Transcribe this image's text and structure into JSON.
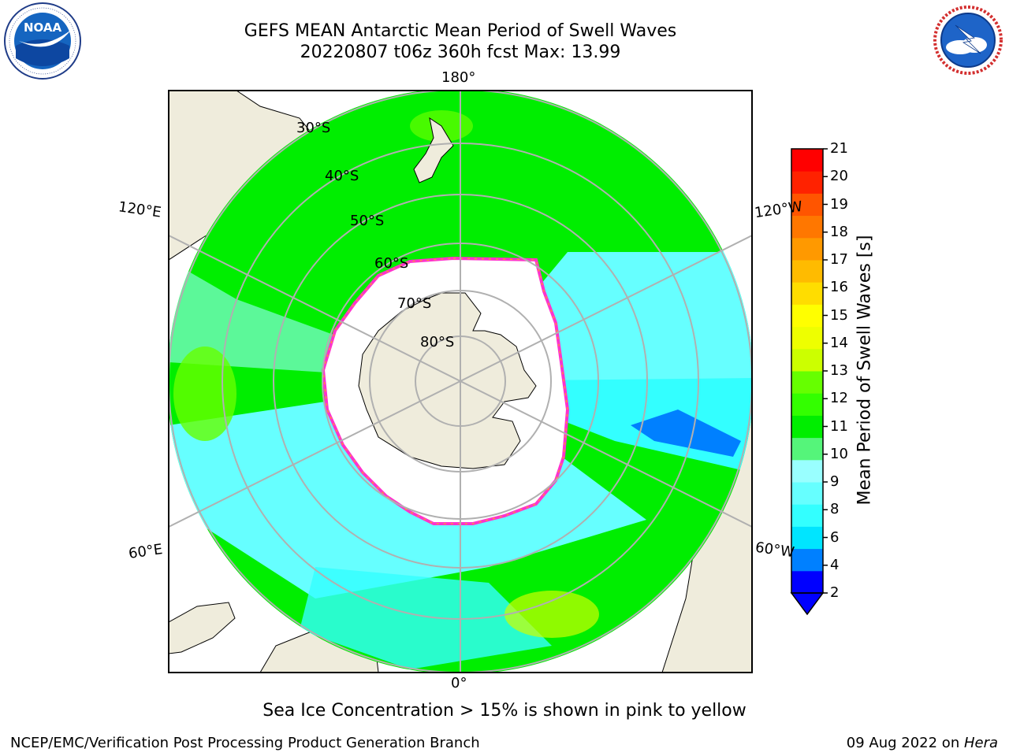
{
  "title": {
    "line1": "GEFS MEAN Antarctic Mean Period of Swell Waves",
    "line2": "20220807 t06z 360h fcst   Max: 13.99"
  },
  "logos": {
    "noaa": {
      "text": "NOAA",
      "ring_text": "NATIONAL OCEANIC AND ATMOSPHERIC ADMINISTRATION · U.S. DEPARTMENT OF COMMERCE"
    },
    "nws": {
      "ring_text": "NATIONAL WEATHER SERVICE"
    }
  },
  "map": {
    "projection": "south-polar-stereographic",
    "longitude_labels": {
      "top": "180°",
      "upper_left": "120°E",
      "upper_right": "120°W",
      "lower_left": "60°E",
      "lower_right": "60°W",
      "bottom": "0°"
    },
    "latitude_labels": [
      "30°S",
      "40°S",
      "50°S",
      "60°S",
      "70°S",
      "80°S"
    ],
    "colors": {
      "land": "#efecdc",
      "ice_free_white": "#ffffff",
      "sea_ice_edge": "#ff33cc",
      "gridline": "#b0b0b0"
    }
  },
  "colorbar": {
    "label": "Mean Period of Swell Waves [s]",
    "ticks": [
      "21",
      "20",
      "19",
      "18",
      "17",
      "16",
      "15",
      "14",
      "13",
      "12",
      "11",
      "10",
      "9",
      "8",
      "6",
      "4",
      "2"
    ],
    "colors": [
      "#0000ff",
      "#0080ff",
      "#00e5ff",
      "#33ffff",
      "#66ffff",
      "#99ffff",
      "#55f57a",
      "#00ee00",
      "#33ff00",
      "#66ff00",
      "#ccff00",
      "#eeff00",
      "#ffff00",
      "#ffdd00",
      "#ffbb00",
      "#ff9900",
      "#ff7700",
      "#ff5500",
      "#ff2200",
      "#ff0000"
    ]
  },
  "caption": "Sea Ice Concentration > 15% is shown in pink to yellow",
  "footer": {
    "left": "NCEP/EMC/Verification Post Processing Product Generation Branch",
    "right_date": "09 Aug 2022 on ",
    "right_machine": "Hera"
  }
}
